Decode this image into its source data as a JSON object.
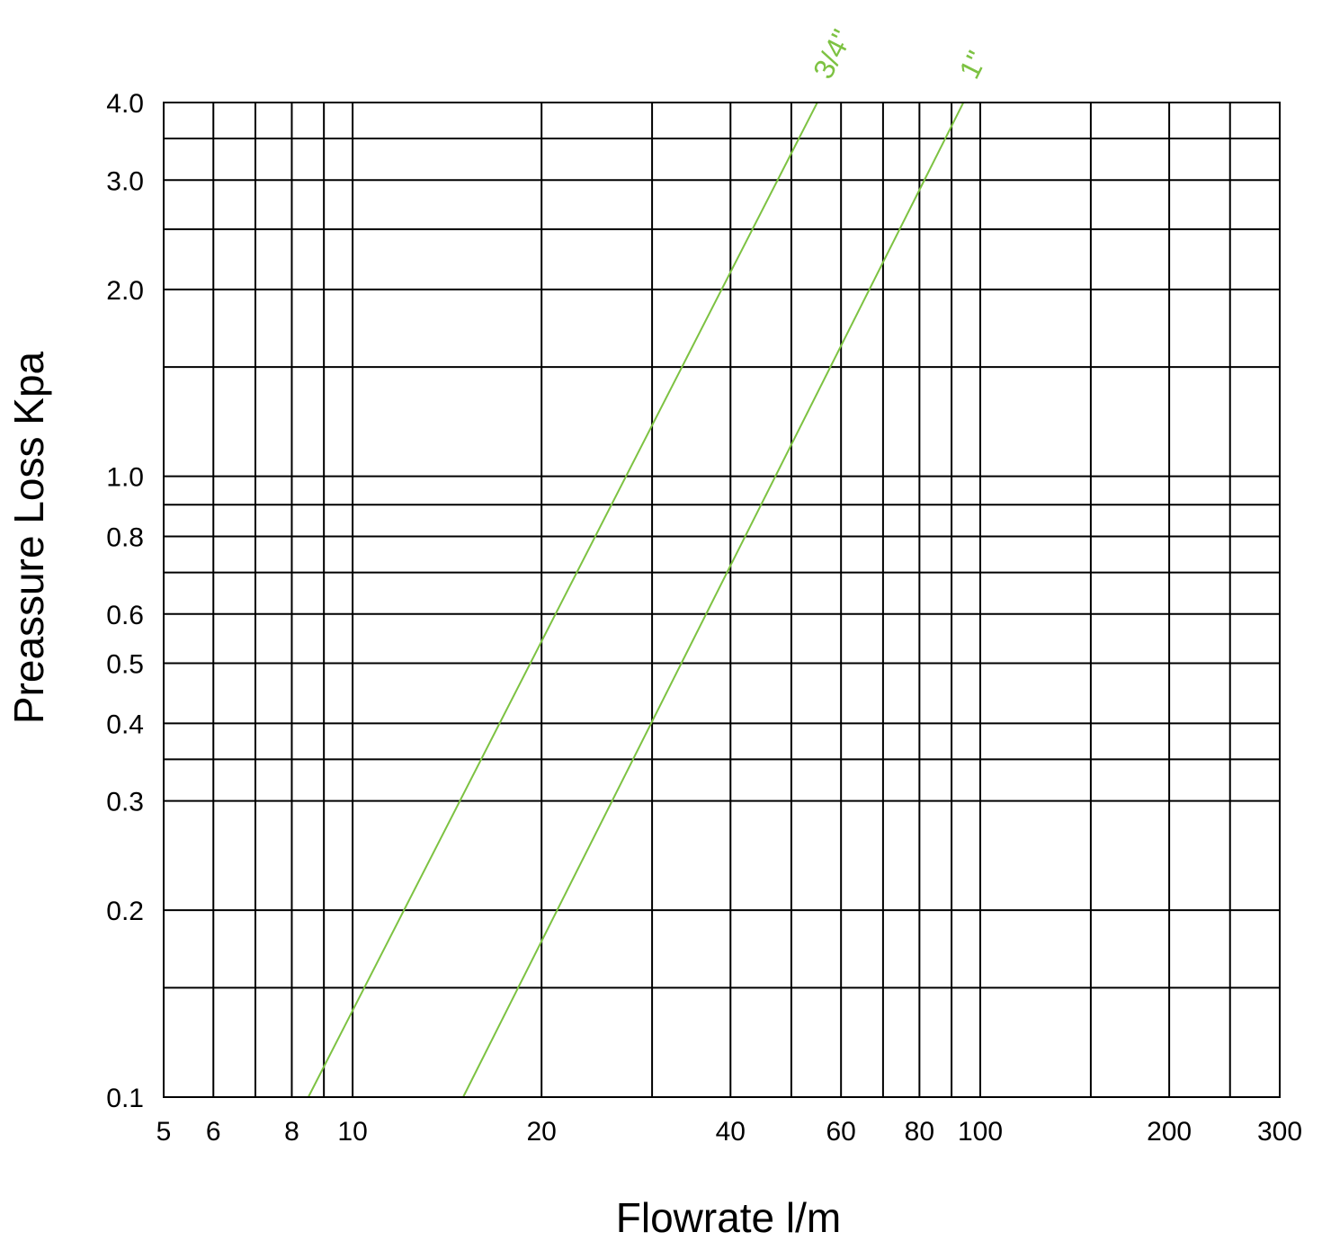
{
  "chart_data": {
    "type": "line",
    "xlabel": "Flowrate l/m",
    "ylabel": "Preassure Loss Kpa",
    "xscale": "log",
    "yscale": "log",
    "xlim": [
      5,
      300
    ],
    "ylim": [
      0.1,
      4.0
    ],
    "grid": true,
    "x_ticks": [
      {
        "value": 5,
        "label": "5"
      },
      {
        "value": 6,
        "label": "6"
      },
      {
        "value": 8,
        "label": "8"
      },
      {
        "value": 10,
        "label": "10"
      },
      {
        "value": 20,
        "label": "20"
      },
      {
        "value": 40,
        "label": "40"
      },
      {
        "value": 60,
        "label": "60"
      },
      {
        "value": 80,
        "label": "80"
      },
      {
        "value": 100,
        "label": "100"
      },
      {
        "value": 200,
        "label": "200"
      },
      {
        "value": 300,
        "label": "300"
      }
    ],
    "x_gridlines": [
      6,
      7,
      8,
      9,
      10,
      20,
      30,
      40,
      50,
      60,
      70,
      80,
      90,
      100,
      150,
      200,
      250
    ],
    "y_ticks": [
      {
        "value": 4.0,
        "label": "4.0"
      },
      {
        "value": 3.0,
        "label": "3.0"
      },
      {
        "value": 2.0,
        "label": "2.0"
      },
      {
        "value": 1.0,
        "label": "1.0"
      },
      {
        "value": 0.8,
        "label": "0.8"
      },
      {
        "value": 0.6,
        "label": "0.6"
      },
      {
        "value": 0.5,
        "label": "0.5"
      },
      {
        "value": 0.4,
        "label": "0.4"
      },
      {
        "value": 0.3,
        "label": "0.3"
      },
      {
        "value": 0.2,
        "label": "0.2"
      },
      {
        "value": 0.1,
        "label": "0.1"
      }
    ],
    "y_gridlines": [
      0.15,
      0.2,
      0.3,
      0.35,
      0.4,
      0.5,
      0.6,
      0.7,
      0.8,
      0.9,
      1.0,
      1.5,
      2.0,
      2.5,
      3.0,
      3.5
    ],
    "series": [
      {
        "name": "3/4\"",
        "color": "#7dc242",
        "x": [
          8.5,
          55
        ],
        "y": [
          0.1,
          4.0
        ]
      },
      {
        "name": "1\"",
        "color": "#7dc242",
        "x": [
          15,
          94
        ],
        "y": [
          0.1,
          4.0
        ]
      }
    ]
  }
}
